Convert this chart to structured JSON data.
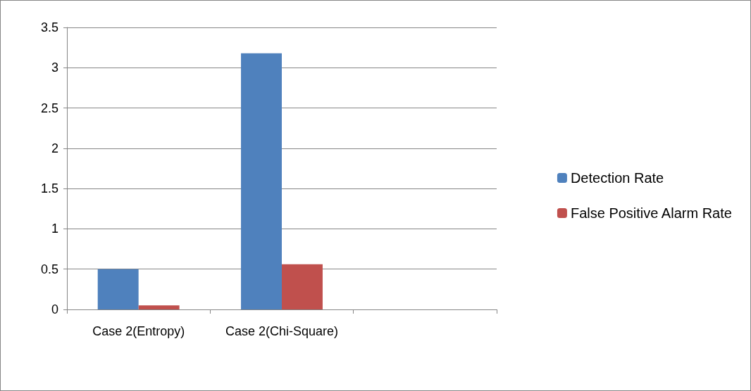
{
  "chart_data": {
    "type": "bar",
    "categories": [
      "Case 2(Entropy)",
      "Case 2(Chi-Square)",
      null
    ],
    "series": [
      {
        "name": "Detection Rate",
        "color": "#4f81bd",
        "values": [
          0.5,
          3.18,
          null
        ]
      },
      {
        "name": "False Positive Alarm Rate",
        "color": "#c0504d",
        "values": [
          0.05,
          0.56,
          null
        ]
      }
    ],
    "ylim": [
      0,
      3.5
    ],
    "yticks": [
      0,
      0.5,
      1,
      1.5,
      2,
      2.5,
      3,
      3.5
    ],
    "grid": "y",
    "legend": "right"
  }
}
